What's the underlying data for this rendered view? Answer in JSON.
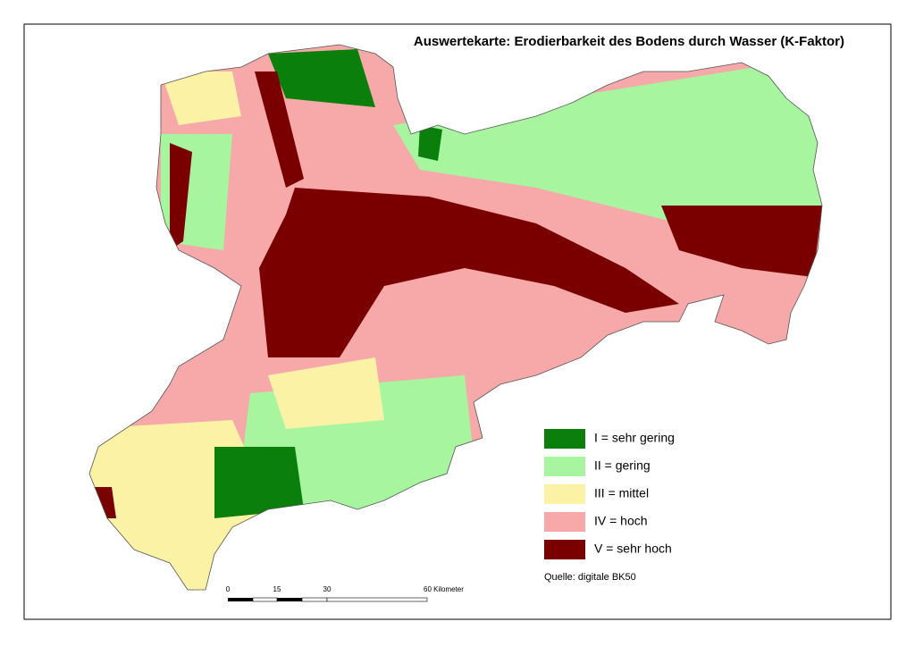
{
  "title": "Auswertekarte: Erodierbarkeit des Bodens durch Wasser (K-Faktor)",
  "legend": {
    "items": [
      {
        "label": "I = sehr gering",
        "color": "#0b7f0b"
      },
      {
        "label": "II = gering",
        "color": "#a8f5a0"
      },
      {
        "label": "III = mittel",
        "color": "#fbf2a5"
      },
      {
        "label": "IV = hoch",
        "color": "#f7a8a8"
      },
      {
        "label": "V = sehr hoch",
        "color": "#7a0000"
      }
    ]
  },
  "scale_bar": {
    "labels": [
      "0",
      "15",
      "30",
      "60 Kilometer"
    ]
  },
  "source": "Quelle: digitale BK50"
}
